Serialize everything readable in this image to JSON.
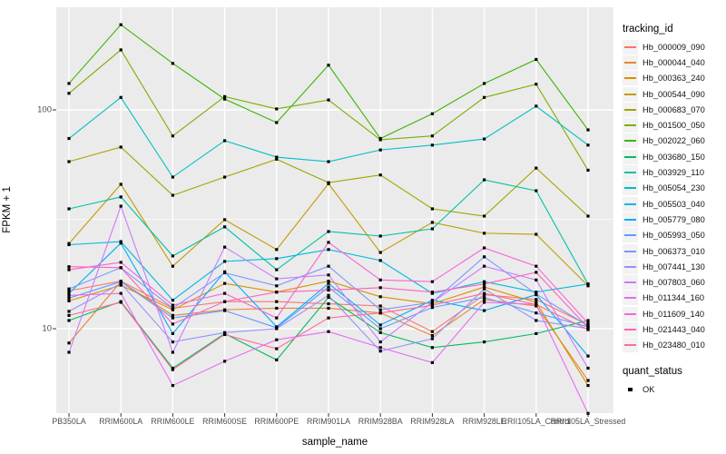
{
  "axes": {
    "y_title": "FPKM + 1",
    "x_title": "sample_name"
  },
  "legend": {
    "tracking_title": "tracking_id",
    "quant_title": "quant_status",
    "quant_items": [
      {
        "label": "OK",
        "marker": "black-square"
      }
    ]
  },
  "colors": {
    "panel_background": "#EBEBEB",
    "gridline": "#FFFFFF",
    "tick_mark": "#333333",
    "tick_text": "#4D4D4D",
    "point": "#000000"
  },
  "chart_data": {
    "type": "line",
    "y_scale": "log10",
    "ylim": [
      4,
      300
    ],
    "grid": "on",
    "legend_position": "right",
    "title": "",
    "xlabel": "sample_name",
    "ylabel": "FPKM + 1",
    "point_shape": "square",
    "point_color": "#000000",
    "y_axis": {
      "ticks": [
        {
          "label": "100",
          "value": 100
        },
        {
          "label": "10",
          "value": 10
        }
      ],
      "minor_gridline_values": [
        316,
        31.6
      ],
      "major_gridline_values": [
        100,
        10
      ]
    },
    "categories": [
      "PB350LA",
      "RRIM600LA",
      "RRIM600LE",
      "RRIM600SE",
      "RRIM600PE",
      "RRIM901LA",
      "RRIM928BA",
      "RRIM928LA",
      "RRIM928LE",
      "RRII105LA_Control",
      "RRII105LA_Stressed"
    ],
    "series": [
      {
        "name": "Hb_000009_090",
        "color": "#F8766D",
        "values": [
          14.9,
          16.5,
          12.4,
          13.3,
          13.3,
          13.0,
          12.7,
          9.7,
          14.3,
          13.6,
          10.4
        ]
      },
      {
        "name": "Hb_000044_040",
        "color": "#EA8331",
        "values": [
          8.6,
          16.4,
          11.5,
          12.2,
          12.4,
          12.4,
          11.8,
          9.3,
          13.6,
          12.7,
          5.8
        ]
      },
      {
        "name": "Hb_000363_240",
        "color": "#D89000",
        "values": [
          13.4,
          15.8,
          12.2,
          16.1,
          14.7,
          16.5,
          14.0,
          13.0,
          15.5,
          13.2,
          5.5
        ]
      },
      {
        "name": "Hb_000544_090",
        "color": "#C09B00",
        "values": [
          24.5,
          45.7,
          19.3,
          31.5,
          23.0,
          46.0,
          22.3,
          30.6,
          27.3,
          27.0,
          15.7
        ]
      },
      {
        "name": "Hb_000683_070",
        "color": "#A3A500",
        "values": [
          58.0,
          67.6,
          40.7,
          49.3,
          59.5,
          46.5,
          50.4,
          35.3,
          32.7,
          54.2,
          32.7
        ]
      },
      {
        "name": "Hb_001500_050",
        "color": "#7CAE00",
        "values": [
          119,
          188,
          76,
          115,
          101,
          111,
          73,
          76,
          114,
          131,
          53
        ]
      },
      {
        "name": "Hb_002022_060",
        "color": "#39B600",
        "values": [
          132,
          245,
          163,
          112,
          87.5,
          160,
          74,
          96,
          132,
          170,
          81
        ]
      },
      {
        "name": "Hb_003680_150",
        "color": "#00BD5C",
        "values": [
          10.9,
          13.3,
          6.6,
          9.5,
          7.2,
          13.9,
          9.6,
          8.2,
          8.7,
          9.5,
          10.9
        ]
      },
      {
        "name": "Hb_003929_110",
        "color": "#00C1A7",
        "values": [
          35.3,
          40.0,
          21.5,
          29.2,
          18.6,
          27.8,
          26.5,
          28.6,
          47.9,
          42.7,
          16.0
        ]
      },
      {
        "name": "Hb_005054_230",
        "color": "#00BFC4",
        "values": [
          74,
          114,
          49.3,
          72.3,
          60.8,
          58,
          65.6,
          69,
          73.6,
          104,
          69
        ]
      },
      {
        "name": "Hb_005503_040",
        "color": "#00BAE0",
        "values": [
          24.2,
          25.0,
          13.5,
          20.3,
          20.9,
          23.0,
          20.5,
          14.5,
          16.4,
          14.7,
          16.0
        ]
      },
      {
        "name": "Hb_005779_080",
        "color": "#00ACFC",
        "values": [
          14.5,
          24.6,
          9.5,
          18.2,
          10.2,
          16.1,
          10.4,
          13.5,
          12.1,
          14.3,
          7.5
        ]
      },
      {
        "name": "Hb_005993_050",
        "color": "#619CFF",
        "values": [
          13.8,
          16.4,
          11.2,
          12.1,
          10.1,
          15.5,
          10.0,
          12.5,
          13.9,
          11.8,
          10.2
        ]
      },
      {
        "name": "Hb_006373_010",
        "color": "#7E96FF",
        "values": [
          15.2,
          19.0,
          12.4,
          18.0,
          15.7,
          19.3,
          12.2,
          13.2,
          21.3,
          14.4,
          10.3
        ]
      },
      {
        "name": "Hb_007441_130",
        "color": "#9590FF",
        "values": [
          12.0,
          16.1,
          8.7,
          9.6,
          10.0,
          14.2,
          7.9,
          9.0,
          15.2,
          10.9,
          10.0
        ]
      },
      {
        "name": "Hb_007803_060",
        "color": "#C77CFF",
        "values": [
          7.8,
          36.3,
          7.8,
          23.6,
          16.9,
          17.6,
          8.7,
          13.2,
          19.3,
          16.7,
          6.6
        ]
      },
      {
        "name": "Hb_011344_160",
        "color": "#E76BF3",
        "values": [
          14.2,
          14.5,
          5.5,
          7.1,
          8.9,
          9.7,
          8.2,
          7.0,
          13.2,
          12.9,
          4.1
        ]
      },
      {
        "name": "Hb_011609_140",
        "color": "#FA62DB",
        "values": [
          18.6,
          20.1,
          12.8,
          14.5,
          11.2,
          24.8,
          16.7,
          16.4,
          23.4,
          19.3,
          10.6
        ]
      },
      {
        "name": "Hb_021443_040",
        "color": "#FF62BC",
        "values": [
          19.2,
          19.0,
          10.5,
          13.3,
          14.7,
          15.0,
          15.4,
          14.7,
          16.0,
          18.1,
          10.1
        ]
      },
      {
        "name": "Hb_023480_010",
        "color": "#FF6A98",
        "values": [
          11.5,
          13.2,
          6.5,
          9.4,
          8.1,
          11.2,
          11.8,
          12.8,
          14.5,
          12.9,
          9.9
        ]
      }
    ]
  }
}
